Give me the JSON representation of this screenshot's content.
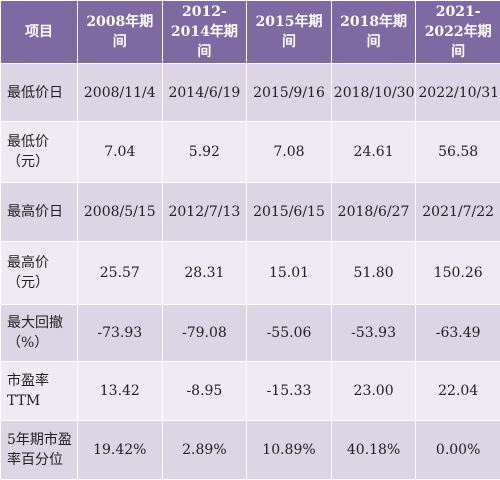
{
  "table": {
    "headers": [
      "项目",
      "2008年期间",
      "2012-2014年期间",
      "2015年期间",
      "2018年期间",
      "2021-2022年期间"
    ],
    "rows": [
      {
        "label": "最低价日",
        "values": [
          "2008/11/4",
          "2014/6/19",
          "2015/9/16",
          "2018/10/30",
          "2022/10/31"
        ]
      },
      {
        "label": "最低价（元）",
        "values": [
          "7.04",
          "5.92",
          "7.08",
          "24.61",
          "56.58"
        ]
      },
      {
        "label": "最高价日",
        "values": [
          "2008/5/15",
          "2012/7/13",
          "2015/6/15",
          "2018/6/27",
          "2021/7/22"
        ]
      },
      {
        "label": "最高价（元）",
        "values": [
          "25.57",
          "28.31",
          "15.01",
          "51.80",
          "150.26"
        ]
      },
      {
        "label": "最大回撤（%）",
        "values": [
          "-73.93",
          "-79.08",
          "-55.06",
          "-53.93",
          "-63.49"
        ]
      },
      {
        "label": "市盈率TTM",
        "values": [
          "13.42",
          "-8.95",
          "-15.33",
          "23.00",
          "22.04"
        ]
      },
      {
        "label": "5年期市盈率百分位",
        "values": [
          "19.42%",
          "2.89%",
          "10.89%",
          "40.18%",
          "0.00%"
        ]
      }
    ]
  },
  "colors": {
    "header_bg": "#7f69a3",
    "row_dark": "#dcd5e6",
    "row_light": "#efebf3"
  }
}
